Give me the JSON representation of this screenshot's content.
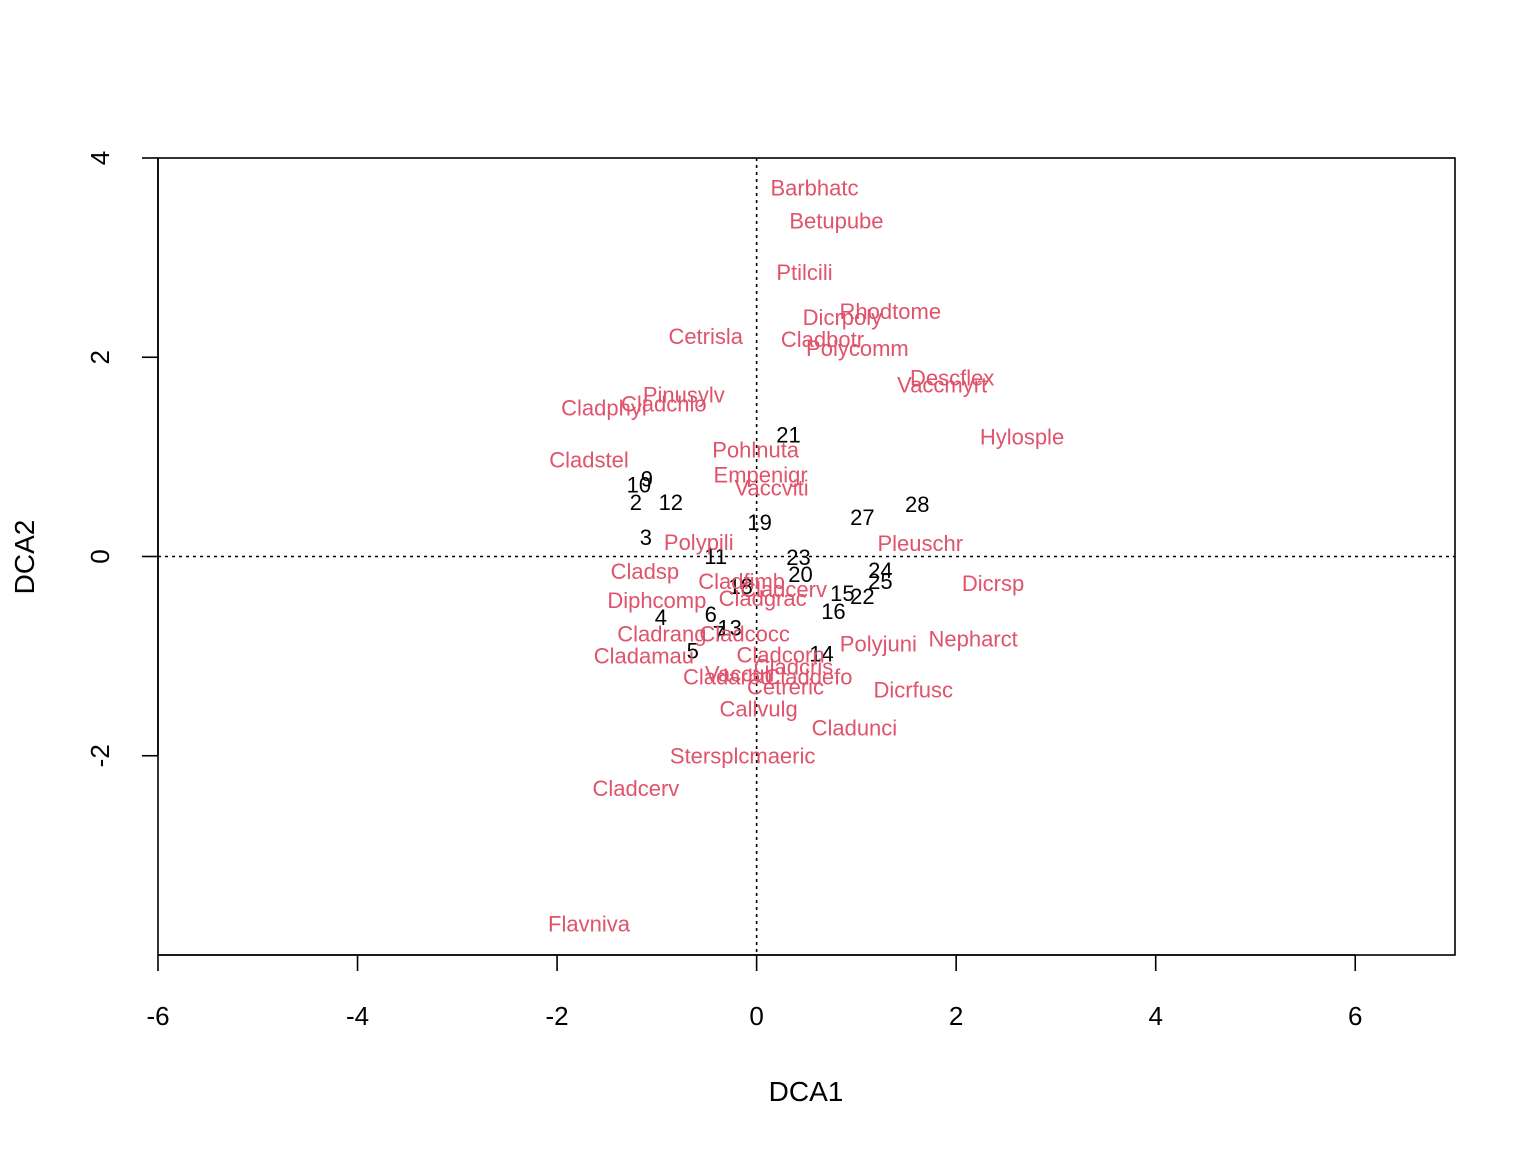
{
  "chart_data": {
    "type": "scatter",
    "title": "",
    "xlabel": "DCA1",
    "ylabel": "DCA2",
    "xlim": [
      -6,
      7
    ],
    "ylim": [
      -4,
      4
    ],
    "x_ticks": [
      "-6",
      "-4",
      "-2",
      "0",
      "2",
      "4",
      "6"
    ],
    "y_ticks": [
      "-2",
      "0",
      "2",
      "4"
    ],
    "x_tick_values": [
      -6,
      -4,
      -2,
      0,
      2,
      4,
      6
    ],
    "y_tick_values": [
      -2,
      0,
      2,
      4
    ],
    "reference_lines": {
      "x": 0,
      "y": 0,
      "style": "dotted"
    },
    "grid": false,
    "colors": {
      "sites": "#000000",
      "species": "#DF536B"
    },
    "series": [
      {
        "kind": "sites",
        "points": [
          {
            "label": "21",
            "x": 0.32,
            "y": 1.22
          },
          {
            "label": "9",
            "x": -1.1,
            "y": 0.78
          },
          {
            "label": "10",
            "x": -1.18,
            "y": 0.72
          },
          {
            "label": "2",
            "x": -1.21,
            "y": 0.54
          },
          {
            "label": "12",
            "x": -0.86,
            "y": 0.54
          },
          {
            "label": "19",
            "x": 0.03,
            "y": 0.34
          },
          {
            "label": "27",
            "x": 1.06,
            "y": 0.39
          },
          {
            "label": "28",
            "x": 1.61,
            "y": 0.52
          },
          {
            "label": "3",
            "x": -1.11,
            "y": 0.19
          },
          {
            "label": "11",
            "x": -0.41,
            "y": 0.0
          },
          {
            "label": "23",
            "x": 0.42,
            "y": -0.01
          },
          {
            "label": "24",
            "x": 1.24,
            "y": -0.14
          },
          {
            "label": "20",
            "x": 0.44,
            "y": -0.18
          },
          {
            "label": "25",
            "x": 1.24,
            "y": -0.25
          },
          {
            "label": "18",
            "x": -0.16,
            "y": -0.3
          },
          {
            "label": "15",
            "x": 0.86,
            "y": -0.37
          },
          {
            "label": "22",
            "x": 1.06,
            "y": -0.4
          },
          {
            "label": "16",
            "x": 0.77,
            "y": -0.55
          },
          {
            "label": "4",
            "x": -0.96,
            "y": -0.61
          },
          {
            "label": "6",
            "x": -0.46,
            "y": -0.58
          },
          {
            "label": "13",
            "x": -0.27,
            "y": -0.72
          },
          {
            "label": "7",
            "x": -0.38,
            "y": -0.78
          },
          {
            "label": "5",
            "x": -0.64,
            "y": -0.95
          },
          {
            "label": "14",
            "x": 0.65,
            "y": -0.98
          }
        ]
      },
      {
        "kind": "species",
        "points": [
          {
            "label": "Barbhatc",
            "x": 0.58,
            "y": 3.7
          },
          {
            "label": "Betupube",
            "x": 0.8,
            "y": 3.37
          },
          {
            "label": "Ptilcili",
            "x": 0.48,
            "y": 2.85
          },
          {
            "label": "Rhodtome",
            "x": 1.34,
            "y": 2.46
          },
          {
            "label": "Dicrpoly",
            "x": 0.86,
            "y": 2.4
          },
          {
            "label": "Cetrisla",
            "x": -0.51,
            "y": 2.21
          },
          {
            "label": "Cladbotr",
            "x": 0.66,
            "y": 2.18
          },
          {
            "label": "Polycomm",
            "x": 1.01,
            "y": 2.09
          },
          {
            "label": "Descflex",
            "x": 1.96,
            "y": 1.79
          },
          {
            "label": "Vaccmyrt",
            "x": 1.86,
            "y": 1.72
          },
          {
            "label": "Pinusylv",
            "x": -0.73,
            "y": 1.62
          },
          {
            "label": "Cladchlo",
            "x": -0.93,
            "y": 1.53
          },
          {
            "label": "Cladphyl",
            "x": -1.53,
            "y": 1.49
          },
          {
            "label": "Hylosple",
            "x": 2.66,
            "y": 1.2
          },
          {
            "label": "Pohlnuta",
            "x": -0.01,
            "y": 1.07
          },
          {
            "label": "Cladstel",
            "x": -1.68,
            "y": 0.97
          },
          {
            "label": "Empenigr",
            "x": 0.04,
            "y": 0.82
          },
          {
            "label": "Vaccviti",
            "x": 0.15,
            "y": 0.69
          },
          {
            "label": "Pleuschr",
            "x": 1.64,
            "y": 0.13
          },
          {
            "label": "Polypili",
            "x": -0.58,
            "y": 0.14
          },
          {
            "label": "Cladsp",
            "x": -1.12,
            "y": -0.15
          },
          {
            "label": "Dicrsp",
            "x": 2.37,
            "y": -0.27
          },
          {
            "label": "Cladfimb",
            "x": -0.15,
            "y": -0.25
          },
          {
            "label": "Cladcerv_x",
            "x": 0.27,
            "y": -0.33
          },
          {
            "label": "Diphcomp",
            "x": -1.0,
            "y": -0.44
          },
          {
            "label": "Cladgrac",
            "x": 0.06,
            "y": -0.42
          },
          {
            "label": "Nepharct",
            "x": 2.17,
            "y": -0.83
          },
          {
            "label": "Cladrang",
            "x": -0.95,
            "y": -0.78
          },
          {
            "label": "Cladcocc",
            "x": -0.12,
            "y": -0.78
          },
          {
            "label": "Polyjuni",
            "x": 1.22,
            "y": -0.88
          },
          {
            "label": "Cladamau",
            "x": -1.13,
            "y": -1.0
          },
          {
            "label": "Cladcorn",
            "x": 0.24,
            "y": -0.99
          },
          {
            "label": "Cladcris",
            "x": 0.37,
            "y": -1.11
          },
          {
            "label": "Vacculi",
            "x": -0.17,
            "y": -1.18
          },
          {
            "label": "Cladarbu",
            "x": -0.29,
            "y": -1.21
          },
          {
            "label": "Claddefo",
            "x": 0.52,
            "y": -1.21
          },
          {
            "label": "Cetreric",
            "x": 0.29,
            "y": -1.31
          },
          {
            "label": "Dicrfusc",
            "x": 1.57,
            "y": -1.34
          },
          {
            "label": "Callvulg",
            "x": 0.02,
            "y": -1.53
          },
          {
            "label": "Cladunci",
            "x": 0.98,
            "y": -1.72
          },
          {
            "label": "Stersplcmaeric",
            "x": -0.14,
            "y": -2.0
          },
          {
            "label": "Cladcerv",
            "x": -1.21,
            "y": -2.33
          },
          {
            "label": "Flavniva",
            "x": -1.68,
            "y": -3.69
          }
        ]
      }
    ]
  }
}
